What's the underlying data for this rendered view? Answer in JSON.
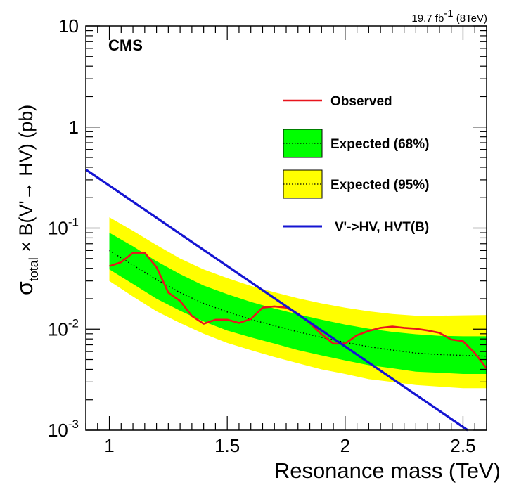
{
  "header": {
    "lumi_text": "19.7 fb",
    "lumi_sup": "-1",
    "lumi_energy": " (8TeV)",
    "experiment_label": "CMS"
  },
  "chart_data": {
    "type": "line",
    "title": "",
    "xlabel": "Resonance mass (TeV)",
    "ylabel": {
      "sigma": "σ",
      "sub": "total",
      "rest": " × B(V'→ HV) (pb)"
    },
    "xlim": [
      0.9,
      2.6
    ],
    "ylim": [
      0.001,
      10
    ],
    "y_scale": "log",
    "x_ticks": [
      {
        "v": 1.0,
        "label": "1"
      },
      {
        "v": 1.5,
        "label": "1.5"
      },
      {
        "v": 2.0,
        "label": "2"
      },
      {
        "v": 2.5,
        "label": "2.5"
      }
    ],
    "y_ticks": [
      {
        "v": 10,
        "base": "10",
        "exp": ""
      },
      {
        "v": 1,
        "base": "1",
        "exp": ""
      },
      {
        "v": 0.1,
        "base": "10",
        "exp": "-1"
      },
      {
        "v": 0.01,
        "base": "10",
        "exp": "-2"
      },
      {
        "v": 0.001,
        "base": "10",
        "exp": "-3"
      }
    ],
    "legend_position": "top-right",
    "series": [
      {
        "name": "Observed",
        "color": "#e8141c",
        "x": [
          1.0,
          1.05,
          1.1,
          1.15,
          1.2,
          1.25,
          1.3,
          1.35,
          1.4,
          1.45,
          1.5,
          1.55,
          1.6,
          1.65,
          1.7,
          1.75,
          1.8,
          1.85,
          1.9,
          1.95,
          2.0,
          2.05,
          2.1,
          2.15,
          2.2,
          2.25,
          2.3,
          2.35,
          2.4,
          2.45,
          2.5,
          2.55,
          2.6
        ],
        "y": [
          0.042,
          0.046,
          0.057,
          0.057,
          0.041,
          0.023,
          0.019,
          0.0135,
          0.0113,
          0.0124,
          0.0124,
          0.0115,
          0.0126,
          0.0163,
          0.0168,
          0.0163,
          0.0142,
          0.0115,
          0.0089,
          0.0072,
          0.0072,
          0.0087,
          0.0096,
          0.0103,
          0.0106,
          0.0103,
          0.0101,
          0.0097,
          0.0092,
          0.0079,
          0.0076,
          0.0058,
          0.0041
        ]
      },
      {
        "name": "Expected (68%)",
        "color": "#00ff00",
        "x": [
          1.0,
          1.1,
          1.2,
          1.3,
          1.4,
          1.5,
          1.6,
          1.7,
          1.8,
          1.9,
          2.0,
          2.1,
          2.2,
          2.3,
          2.4,
          2.5,
          2.6
        ],
        "median": [
          0.06,
          0.043,
          0.031,
          0.023,
          0.018,
          0.0148,
          0.0125,
          0.0108,
          0.0094,
          0.0083,
          0.0074,
          0.0067,
          0.0062,
          0.0058,
          0.0056,
          0.0055,
          0.0054
        ],
        "low": [
          0.039,
          0.028,
          0.02,
          0.0152,
          0.0119,
          0.0097,
          0.0083,
          0.0072,
          0.0062,
          0.0055,
          0.0049,
          0.0044,
          0.0041,
          0.0038,
          0.0037,
          0.0036,
          0.0036
        ],
        "high": [
          0.09,
          0.066,
          0.047,
          0.035,
          0.027,
          0.0222,
          0.0186,
          0.016,
          0.014,
          0.0124,
          0.0111,
          0.0101,
          0.0094,
          0.0089,
          0.0086,
          0.0085,
          0.0085
        ]
      },
      {
        "name": "Expected (95%)",
        "color": "#ffff00",
        "x": [
          1.0,
          1.1,
          1.2,
          1.3,
          1.4,
          1.5,
          1.6,
          1.7,
          1.8,
          1.9,
          2.0,
          2.1,
          2.2,
          2.3,
          2.4,
          2.5,
          2.6
        ],
        "low": [
          0.03,
          0.021,
          0.015,
          0.0115,
          0.009,
          0.0073,
          0.0062,
          0.0053,
          0.0046,
          0.004,
          0.0036,
          0.0032,
          0.003,
          0.0028,
          0.0027,
          0.0026,
          0.0026
        ],
        "high": [
          0.128,
          0.094,
          0.068,
          0.05,
          0.039,
          0.032,
          0.0268,
          0.0232,
          0.0202,
          0.018,
          0.0163,
          0.015,
          0.0141,
          0.0136,
          0.0136,
          0.0137,
          0.0138
        ]
      },
      {
        "name": "V'->HV, HVT(B)",
        "color": "#1414d2",
        "x": [
          0.9,
          2.52
        ],
        "y": [
          0.38,
          0.001
        ]
      }
    ]
  }
}
